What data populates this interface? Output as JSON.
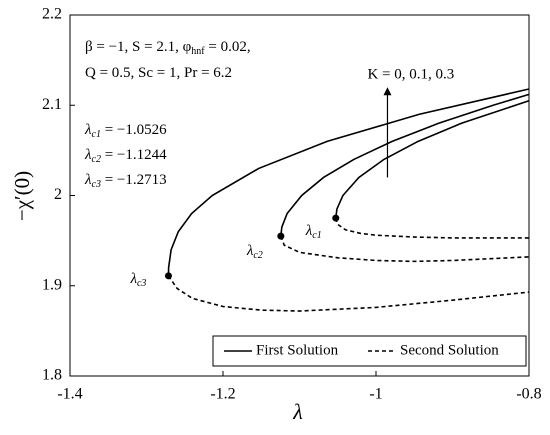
{
  "chart_data": {
    "type": "line",
    "x_label": "λ",
    "y_label": "−χ′(0)",
    "xlim": [
      -1.4,
      -0.8
    ],
    "ylim": [
      1.8,
      2.2
    ],
    "xticks": [
      -1.4,
      -1.2,
      -1,
      -0.8
    ],
    "yticks": [
      1.8,
      1.9,
      2,
      2.1,
      2.2
    ],
    "legend": "lower right",
    "series": [
      {
        "name": "First Solution",
        "color": "#000000",
        "dash": "solid",
        "curves": [
          {
            "x": [
              -1.0526,
              -1.0511,
              -1.0433,
              -1.0224,
              -0.9896,
              -0.9449,
              -0.8883,
              -0.8
            ],
            "values": [
              1.975,
              1.985,
              2.0,
              2.02,
              2.04,
              2.06,
              2.08,
              2.105
            ]
          },
          {
            "x": [
              -1.1244,
              -1.1231,
              -1.1162,
              -1.0971,
              -1.0686,
              -1.029,
              -0.9789,
              -0.9181,
              -0.8469,
              -0.8
            ],
            "values": [
              1.955,
              1.965,
              1.98,
              2.0,
              2.02,
              2.04,
              2.06,
              2.08,
              2.1,
              2.112
            ]
          },
          {
            "x": [
              -1.2713,
              -1.2711,
              -1.2678,
              -1.2584,
              -1.241,
              -1.2141,
              -1.1533,
              -1.0639,
              -0.9433,
              -0.8
            ],
            "values": [
              1.911,
              1.92,
              1.94,
              1.96,
              1.98,
              2.0,
              2.03,
              2.06,
              2.09,
              2.118
            ]
          }
        ]
      },
      {
        "name": "Second Solution",
        "color": "#000000",
        "dash": "dashed",
        "curves": [
          {
            "x": [
              -1.0526,
              -1.05,
              -1.04,
              -1.02,
              -1.0,
              -0.95,
              -0.9,
              -0.8
            ],
            "values": [
              1.975,
              1.968,
              1.962,
              1.958,
              1.956,
              1.954,
              1.953,
              1.953
            ]
          },
          {
            "x": [
              -1.1244,
              -1.12,
              -1.1,
              -1.05,
              -1.0,
              -0.95,
              -0.9,
              -0.85,
              -0.8
            ],
            "values": [
              1.955,
              1.945,
              1.937,
              1.931,
              1.928,
              1.927,
              1.928,
              1.93,
              1.932
            ]
          },
          {
            "x": [
              -1.2713,
              -1.26,
              -1.24,
              -1.2,
              -1.15,
              -1.1,
              -1.0,
              -0.9,
              -0.8
            ],
            "values": [
              1.911,
              1.897,
              1.886,
              1.877,
              1.873,
              1.872,
              1.876,
              1.884,
              1.893
            ]
          }
        ]
      }
    ],
    "critical_points": [
      {
        "symbol": "λ",
        "sub": "c1",
        "x": -1.0526,
        "y": 1.975,
        "note_label": " = −1.0526"
      },
      {
        "symbol": "λ",
        "sub": "c2",
        "x": -1.1244,
        "y": 1.955,
        "note_label": " = −1.1244"
      },
      {
        "symbol": "λ",
        "sub": "c3",
        "x": -1.2713,
        "y": 1.911,
        "note_label": " = −1.2713"
      }
    ],
    "parameters": [
      [
        {
          "text": "β = −1, S = 2.1, φ"
        },
        {
          "sub": "hnf"
        },
        {
          "text": " = 0.02,"
        }
      ],
      [
        {
          "text": "Q = 0.5, Sc = 1, Pr = 6.2"
        }
      ]
    ],
    "arrow_annotation": {
      "text": "K = 0, 0.1, 0.3",
      "x": -0.985,
      "y_from": 2.02,
      "y_to": 2.12
    }
  }
}
